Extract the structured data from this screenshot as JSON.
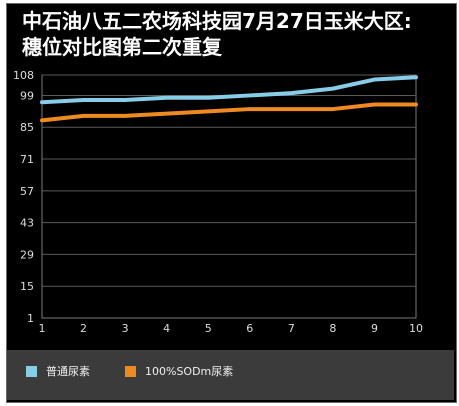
{
  "chart_data": {
    "type": "line",
    "title": "中石油八五二农场科技园7月27日玉米大区:\n穗位对比图第二次重复",
    "xlabel": "",
    "ylabel": "",
    "x": [
      1,
      2,
      3,
      4,
      5,
      6,
      7,
      8,
      9,
      10
    ],
    "x_ticks": [
      "1",
      "2",
      "3",
      "4",
      "5",
      "6",
      "7",
      "8",
      "9",
      "10"
    ],
    "y_ticks": [
      "1",
      "15",
      "29",
      "43",
      "57",
      "71",
      "85",
      "99",
      "108"
    ],
    "y_tick_values": [
      1,
      15,
      29,
      43,
      57,
      71,
      85,
      99,
      108
    ],
    "ylim": [
      1,
      108
    ],
    "grid": true,
    "legend_position": "bottom-left",
    "series": [
      {
        "name": "普通尿素",
        "color": "#87cde8",
        "values": [
          96,
          97,
          97,
          98,
          98,
          99,
          100,
          102,
          106,
          107
        ]
      },
      {
        "name": "100%SODm尿素",
        "color": "#ee8a22",
        "values": [
          88,
          90,
          90,
          91,
          92,
          93,
          93,
          93,
          95,
          95
        ]
      }
    ]
  }
}
